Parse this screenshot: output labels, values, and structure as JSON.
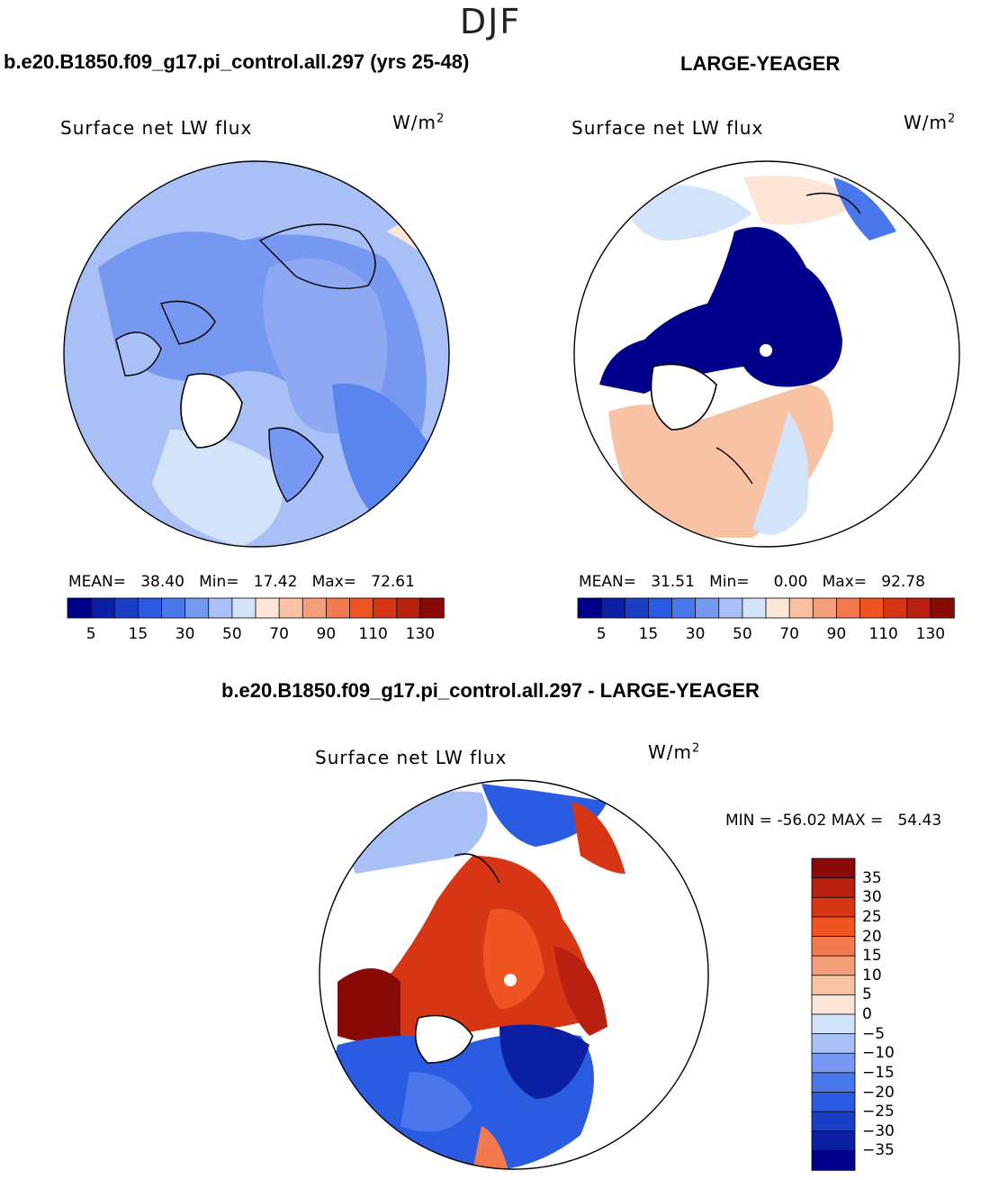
{
  "figure": {
    "season": "DJF",
    "unit_label": "W/m",
    "unit_sup": "2"
  },
  "chart_data": [
    {
      "type": "heatmap",
      "title": "b.e20.B1850.f09_g17.pi_control.all.297 (yrs 25-48)",
      "variable": "Surface net LW flux",
      "projection": "north polar stereographic",
      "stats": {
        "mean_label": "MEAN=",
        "mean": "38.40",
        "min_label": "Min=",
        "min": "17.42",
        "max_label": "Max=",
        "max": "72.61"
      },
      "colorbar": {
        "levels": [
          5,
          10,
          15,
          20,
          30,
          40,
          50,
          60,
          70,
          80,
          90,
          100,
          110,
          120,
          130
        ],
        "tick_labels": [
          "5",
          "15",
          "30",
          "50",
          "70",
          "90",
          "110",
          "130"
        ],
        "colors": [
          "#00008b",
          "#0b1fa3",
          "#1a3fc4",
          "#2a5be0",
          "#4a78ec",
          "#7798f0",
          "#a8c0f6",
          "#d3e4fa",
          "#fde6d6",
          "#f8c2a4",
          "#f59e7a",
          "#f37a4e",
          "#f05422",
          "#d73614",
          "#b82010",
          "#8a0a08"
        ]
      },
      "dominant_value_range": [
        20,
        50
      ]
    },
    {
      "type": "heatmap",
      "title": "LARGE-YEAGER",
      "variable": "Surface net LW flux",
      "projection": "north polar stereographic",
      "stats": {
        "mean_label": "MEAN=",
        "mean": "31.51",
        "min_label": "Min=",
        "min": "0.00",
        "max_label": "Max=",
        "max": "92.78"
      },
      "colorbar": {
        "levels": [
          5,
          10,
          15,
          20,
          30,
          40,
          50,
          60,
          70,
          80,
          90,
          100,
          110,
          120,
          130
        ],
        "tick_labels": [
          "5",
          "15",
          "30",
          "50",
          "70",
          "90",
          "110",
          "130"
        ],
        "colors": [
          "#00008b",
          "#0b1fa3",
          "#1a3fc4",
          "#2a5be0",
          "#4a78ec",
          "#7798f0",
          "#a8c0f6",
          "#d3e4fa",
          "#fde6d6",
          "#f8c2a4",
          "#f59e7a",
          "#f37a4e",
          "#f05422",
          "#d73614",
          "#b82010",
          "#8a0a08"
        ]
      },
      "dominant_value_range": [
        0,
        80
      ]
    },
    {
      "type": "heatmap",
      "title": "b.e20.B1850.f09_g17.pi_control.all.297 - LARGE-YEAGER",
      "variable": "Surface net LW flux",
      "projection": "north polar stereographic",
      "stats": {
        "min_label": "MIN =",
        "min": "-56.02",
        "max_label": "MAX =",
        "max": "54.43"
      },
      "colorbar": {
        "levels": [
          35,
          30,
          25,
          20,
          15,
          10,
          5,
          0,
          -5,
          -10,
          -15,
          -20,
          -25,
          -30,
          -35
        ],
        "tick_labels": [
          "35",
          "30",
          "25",
          "20",
          "15",
          "10",
          "5",
          "0",
          "−5",
          "−10",
          "−15",
          "−20",
          "−25",
          "−30",
          "−35"
        ],
        "colors": [
          "#8a0a08",
          "#b82010",
          "#d73614",
          "#f05422",
          "#f37a4e",
          "#f59e7a",
          "#f8c2a4",
          "#fde6d6",
          "#d3e4fa",
          "#a8c0f6",
          "#7798f0",
          "#4a78ec",
          "#2a5be0",
          "#1a3fc4",
          "#0b1fa3",
          "#00008b"
        ]
      },
      "dominant_value_range": [
        -35,
        35
      ]
    }
  ]
}
